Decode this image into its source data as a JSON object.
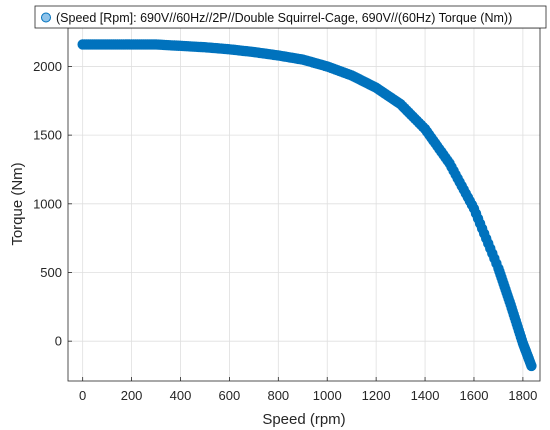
{
  "chart_data": {
    "type": "scatter",
    "legend": {
      "label": "(Speed [Rpm]: 690V//60Hz//2P//Double Squirrel-Cage, 690V//(60Hz) Torque (Nm))",
      "placement": "top"
    },
    "xlabel": "Speed (rpm)",
    "ylabel": "Torque (Nm)",
    "xlim": [
      -60,
      1870
    ],
    "ylim": [
      -290,
      2280
    ],
    "xticks": [
      0,
      200,
      400,
      600,
      800,
      1000,
      1200,
      1400,
      1600,
      1800
    ],
    "yticks": [
      0,
      500,
      1000,
      1500,
      2000
    ],
    "grid": true,
    "series": [
      {
        "name": "(Speed [Rpm]: 690V//60Hz//2P//Double Squirrel-Cage, 690V//(60Hz) Torque (Nm))",
        "color": "#0072BD",
        "x": [
          0,
          100,
          200,
          300,
          400,
          500,
          600,
          700,
          800,
          900,
          1000,
          1100,
          1200,
          1300,
          1400,
          1500,
          1600,
          1700,
          1750,
          1800,
          1835
        ],
        "y": [
          2160,
          2160,
          2160,
          2160,
          2150,
          2140,
          2125,
          2105,
          2080,
          2050,
          2000,
          1935,
          1845,
          1725,
          1545,
          1295,
          965,
          530,
          265,
          -15,
          -180
        ]
      }
    ]
  }
}
